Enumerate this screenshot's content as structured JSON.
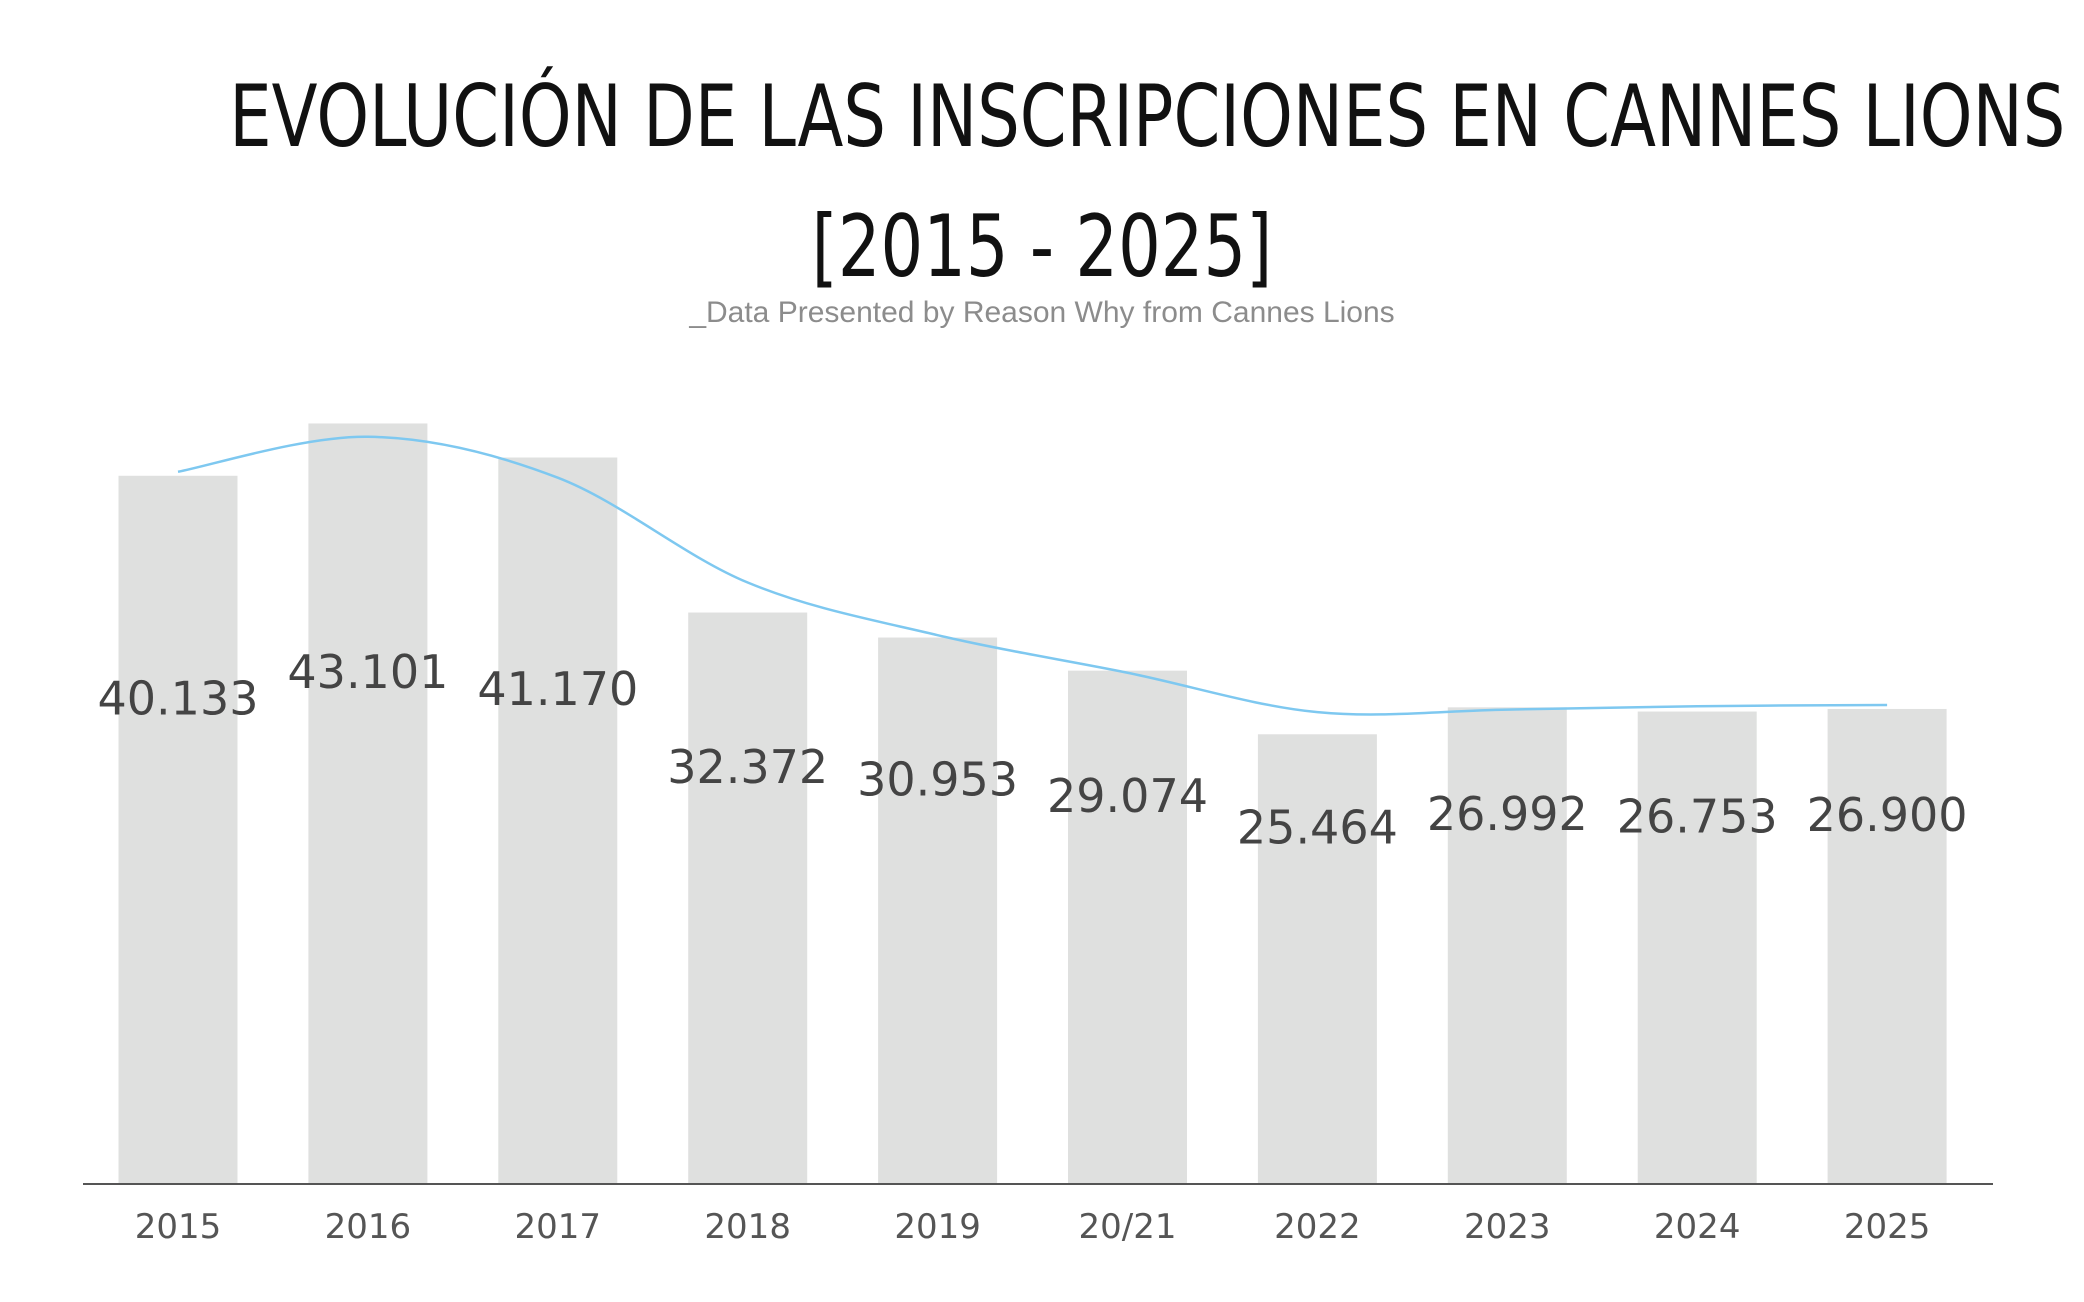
{
  "chart_data": {
    "type": "bar",
    "title_line1": "EVOLUCIÓN DE LAS INSCRIPCIONES EN CANNES LIONS",
    "title_line2": "[2015 - 2025]",
    "subtitle": "_Data Presented by Reason Why from Cannes Lions",
    "categories": [
      "2015",
      "2016",
      "2017",
      "2018",
      "2019",
      "20/21",
      "2022",
      "2023",
      "2024",
      "2025"
    ],
    "values": [
      40133,
      43101,
      41170,
      32372,
      30953,
      29074,
      25464,
      26992,
      26753,
      26900
    ],
    "value_labels": [
      "40.133",
      "43.101",
      "41.170",
      "32.372",
      "30.953",
      "29.074",
      "25.464",
      "26.992",
      "26.753",
      "26.900"
    ],
    "ylim": [
      0,
      45000
    ],
    "grid": false,
    "legend": "none",
    "trend_line": true,
    "colors": {
      "bar": "#dfe0df",
      "trend": "#7ec8f0",
      "axis": "#555555"
    }
  }
}
